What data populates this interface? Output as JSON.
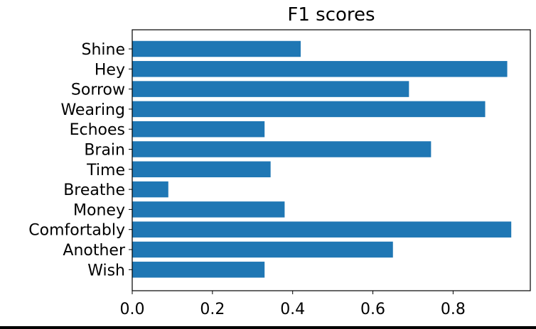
{
  "chart_data": {
    "type": "bar",
    "orientation": "horizontal",
    "title": "F1 scores",
    "xlabel": "",
    "ylabel": "",
    "categories": [
      "Shine",
      "Hey",
      "Sorrow",
      "Wearing",
      "Echoes",
      "Brain",
      "Time",
      "Breathe",
      "Money",
      "Comfortably",
      "Another",
      "Wish"
    ],
    "values": [
      0.42,
      0.935,
      0.69,
      0.88,
      0.33,
      0.745,
      0.345,
      0.09,
      0.38,
      0.945,
      0.65,
      0.33
    ],
    "xticks": [
      "0.0",
      "0.2",
      "0.4",
      "0.6",
      "0.8"
    ],
    "xlim": [
      0.0,
      0.9925
    ],
    "grid": false,
    "bar_color": "#1f77b4"
  }
}
